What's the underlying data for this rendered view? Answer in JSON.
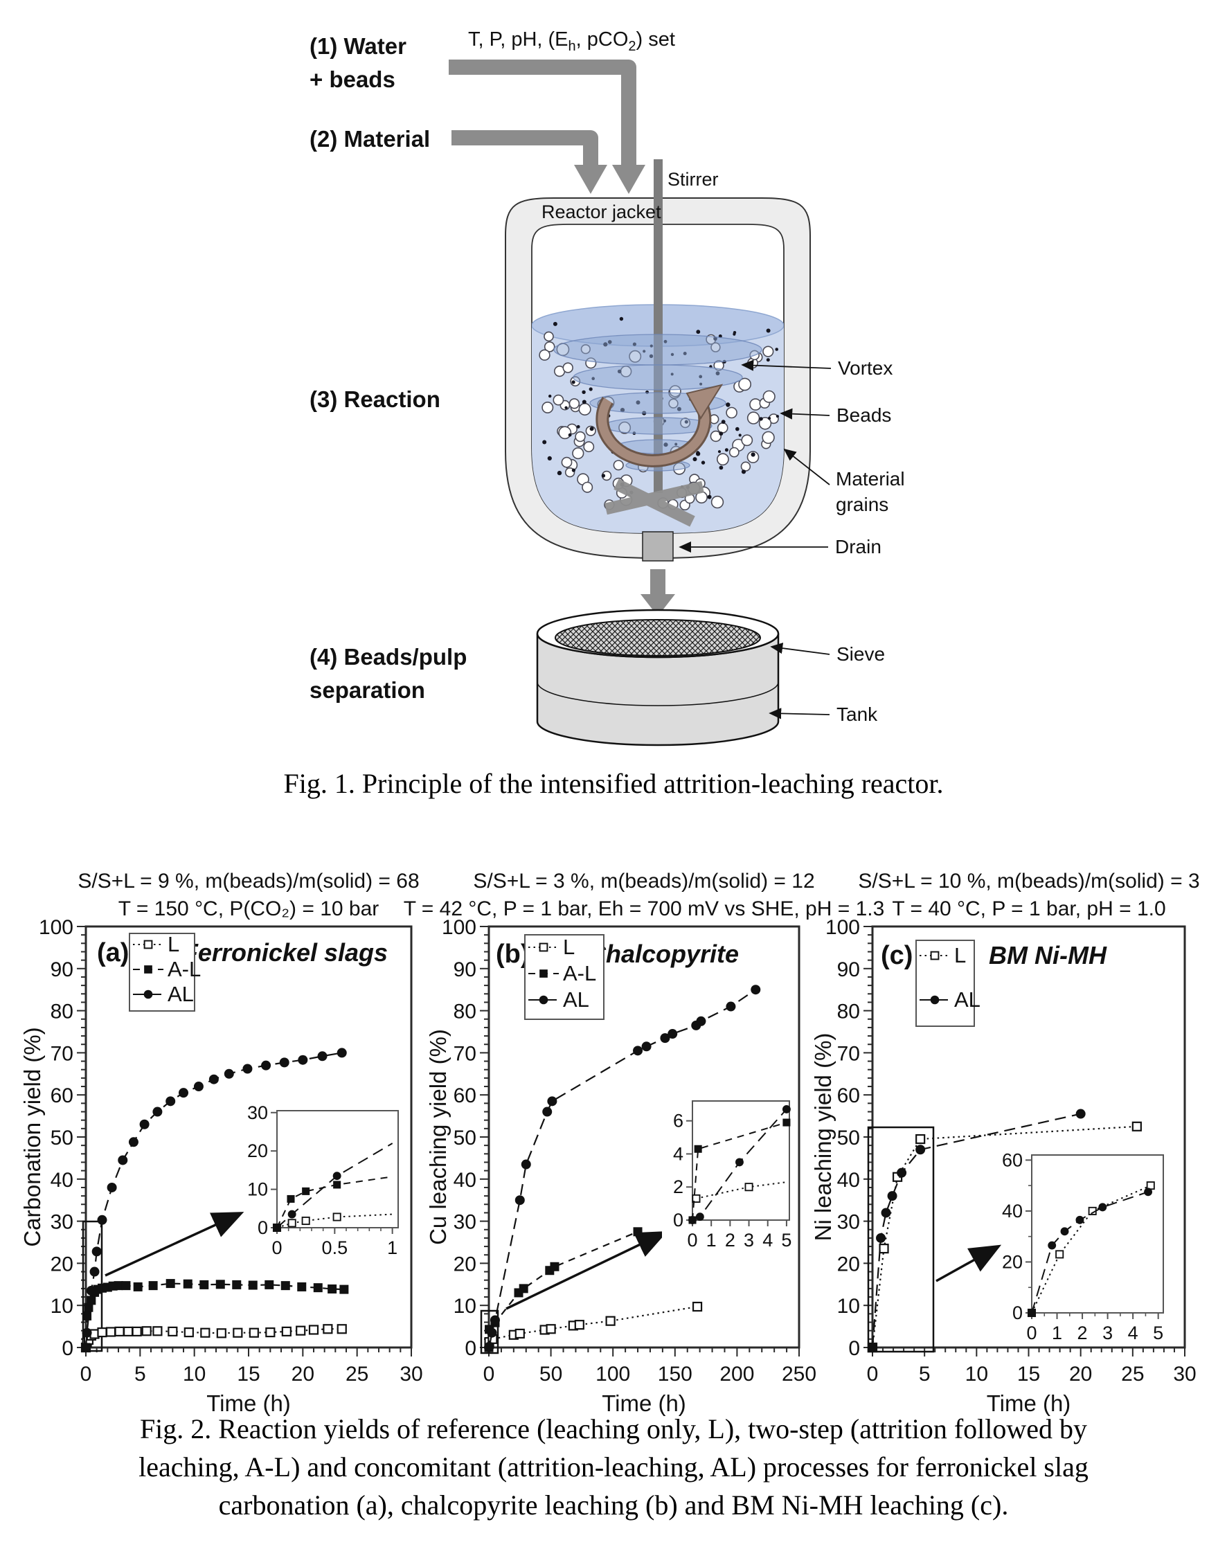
{
  "figure1": {
    "labels": {
      "step1_line1": "(1) Water",
      "step1_line2": "+ beads",
      "params_parts": [
        "T, P, pH, (E",
        "h",
        ", pCO",
        "2",
        ") set"
      ],
      "step2": "(2) Material",
      "stirrer": "Stirrer",
      "reactor_jacket": "Reactor jacket",
      "step3": "(3) Reaction",
      "vortex": "Vortex",
      "beads": "Beads",
      "material_grains_line1": "Material",
      "material_grains_line2": "grains",
      "drain": "Drain",
      "step4_line1": "(4) Beads/pulp",
      "step4_line2": "separation",
      "sieve": "Sieve",
      "tank": "Tank"
    },
    "caption": "Fig. 1. Principle of the intensified attrition-leaching reactor."
  },
  "figure2": {
    "caption_lines": [
      "Fig. 2. Reaction yields of reference (leaching only, L), two-step (attrition followed by",
      "leaching, A-L) and concomitant (attrition-leaching, AL) processes for ferronickel slag",
      "carbonation (a), chalcopyrite leaching (b) and BM Ni-MH leaching (c)."
    ]
  },
  "chart_data": [
    {
      "type": "line",
      "panel": "(a)",
      "material": "Ferronickel slags",
      "title_lines": [
        "S/S+L = 9 %, m(beads)/m(solid) = 68",
        "T = 150 °C, P(CO₂) = 10 bar"
      ],
      "xlabel": "Time (h)",
      "ylabel": "Carbonation yield (%)",
      "xlim": [
        0,
        30
      ],
      "ylim": [
        0,
        100
      ],
      "xticks": [
        0,
        5,
        10,
        15,
        20,
        25,
        30
      ],
      "xminor": 1,
      "yticks": [
        0,
        10,
        20,
        30,
        40,
        50,
        60,
        70,
        80,
        90,
        100
      ],
      "yminor": 2,
      "legend": [
        "L",
        "A-L",
        "AL"
      ],
      "series": [
        {
          "name": "L",
          "marker": "open-square",
          "line": "dotted",
          "points": [
            [
              0,
              0
            ],
            [
              0.1,
              1.2
            ],
            [
              0.25,
              1.8
            ],
            [
              0.5,
              2.8
            ],
            [
              0.8,
              3.2
            ],
            [
              1.5,
              3.6
            ],
            [
              2.3,
              3.7
            ],
            [
              3.1,
              3.8
            ],
            [
              3.9,
              3.8
            ],
            [
              4.7,
              3.8
            ],
            [
              5.6,
              3.9
            ],
            [
              6.6,
              3.9
            ],
            [
              8,
              3.8
            ],
            [
              9.5,
              3.6
            ],
            [
              11,
              3.5
            ],
            [
              12.5,
              3.4
            ],
            [
              14,
              3.5
            ],
            [
              15.5,
              3.5
            ],
            [
              17,
              3.6
            ],
            [
              18.5,
              3.8
            ],
            [
              19.8,
              4
            ],
            [
              21,
              4.2
            ],
            [
              22.3,
              4.4
            ],
            [
              23.6,
              4.4
            ]
          ]
        },
        {
          "name": "A-L",
          "marker": "filled-square",
          "line": "dashed",
          "points": [
            [
              0,
              0
            ],
            [
              0.1,
              7.5
            ],
            [
              0.25,
              9.5
            ],
            [
              0.5,
              11.2
            ],
            [
              0.8,
              13.1
            ],
            [
              1.1,
              13.8
            ],
            [
              1.5,
              14.1
            ],
            [
              2,
              14.3
            ],
            [
              2.5,
              14.6
            ],
            [
              3,
              14.7
            ],
            [
              3.7,
              14.7
            ],
            [
              4.8,
              14.4
            ],
            [
              6.2,
              14.7
            ],
            [
              7.8,
              15.2
            ],
            [
              9.4,
              15.1
            ],
            [
              10.9,
              14.9
            ],
            [
              12.4,
              15
            ],
            [
              13.9,
              14.9
            ],
            [
              15.4,
              14.8
            ],
            [
              16.9,
              14.9
            ],
            [
              18.4,
              14.7
            ],
            [
              19.9,
              14.4
            ],
            [
              21.4,
              14.2
            ],
            [
              22.7,
              13.9
            ],
            [
              23.8,
              13.8
            ]
          ]
        },
        {
          "name": "AL",
          "marker": "filled-circle",
          "line": "longdash",
          "points": [
            [
              0,
              0
            ],
            [
              0.1,
              3.5
            ],
            [
              0.5,
              13.5
            ],
            [
              0.8,
              18
            ],
            [
              1,
              22.8
            ],
            [
              1.5,
              30.3
            ],
            [
              2.4,
              38
            ],
            [
              3.4,
              44.5
            ],
            [
              4.4,
              48.8
            ],
            [
              5.4,
              53
            ],
            [
              6.6,
              56
            ],
            [
              7.8,
              58.5
            ],
            [
              9,
              60.5
            ],
            [
              10.4,
              62
            ],
            [
              11.8,
              63.7
            ],
            [
              13.2,
              65
            ],
            [
              14.9,
              66.2
            ],
            [
              16.6,
              67
            ],
            [
              18.3,
              67.7
            ],
            [
              20,
              68.3
            ],
            [
              21.8,
              69.2
            ],
            [
              23.6,
              70
            ]
          ]
        }
      ],
      "inset": {
        "xlim": [
          0,
          1.05
        ],
        "ylim": [
          0,
          30.5
        ],
        "xticks": [
          0,
          0.5,
          1
        ],
        "xminor": 0.1,
        "yticks": [
          0,
          10,
          20,
          30
        ],
        "series": [
          {
            "name": "L",
            "marker": "open-square",
            "line": "dotted",
            "points": [
              [
                0,
                0
              ],
              [
                0.13,
                1.2
              ],
              [
                0.25,
                1.8
              ],
              [
                0.52,
                2.8
              ]
            ],
            "line_end": [
              1,
              3.5
            ]
          },
          {
            "name": "A-L",
            "marker": "filled-square",
            "line": "dashed",
            "points": [
              [
                0,
                0
              ],
              [
                0.12,
                7.5
              ],
              [
                0.25,
                9.5
              ],
              [
                0.52,
                11.2
              ]
            ],
            "line_end": [
              1,
              13.3
            ]
          },
          {
            "name": "AL",
            "marker": "filled-circle",
            "line": "longdash",
            "points": [
              [
                0,
                0
              ],
              [
                0.13,
                3.5
              ],
              [
                0.52,
                13.5
              ]
            ],
            "line_end": [
              1,
              22
            ]
          }
        ]
      }
    },
    {
      "type": "line",
      "panel": "(b)",
      "material": "Chalcopyrite",
      "title_lines": [
        "S/S+L = 3 %, m(beads)/m(solid) = 12",
        "T = 42 °C, P = 1 bar, Eh = 700 mV vs SHE, pH = 1.3"
      ],
      "xlabel": "Time (h)",
      "ylabel": "Cu leaching yield (%)",
      "xlim": [
        0,
        250
      ],
      "ylim": [
        0,
        100
      ],
      "xticks": [
        0,
        50,
        100,
        150,
        200,
        250
      ],
      "xminor": 10,
      "yticks": [
        0,
        10,
        20,
        30,
        40,
        50,
        60,
        70,
        80,
        90,
        100
      ],
      "yminor": 2,
      "legend": [
        "L",
        "A-L",
        "AL"
      ],
      "series": [
        {
          "name": "L",
          "marker": "open-square",
          "line": "dotted",
          "points": [
            [
              0.3,
              1.3
            ],
            [
              3,
              2
            ],
            [
              20,
              3
            ],
            [
              25,
              3.3
            ],
            [
              45,
              4.2
            ],
            [
              50,
              4.4
            ],
            [
              68,
              5.2
            ],
            [
              73,
              5.4
            ],
            [
              98,
              6.3
            ],
            [
              168,
              9.7
            ]
          ]
        },
        {
          "name": "A-L",
          "marker": "filled-square",
          "line": "dashed",
          "points": [
            [
              0,
              0
            ],
            [
              0.3,
              4.3
            ],
            [
              5,
              5.9
            ],
            [
              24,
              13
            ],
            [
              28,
              14
            ],
            [
              49,
              18.3
            ],
            [
              53,
              19.2
            ],
            [
              120,
              27.5
            ]
          ]
        },
        {
          "name": "AL",
          "marker": "filled-circle",
          "line": "longdash",
          "points": [
            [
              0,
              0
            ],
            [
              0.4,
              0.2
            ],
            [
              2.5,
              3.5
            ],
            [
              5,
              6.5
            ],
            [
              25,
              35
            ],
            [
              30,
              43.5
            ],
            [
              47,
              56
            ],
            [
              51,
              58.5
            ],
            [
              120,
              70.5
            ],
            [
              127,
              71.5
            ],
            [
              142,
              73.5
            ],
            [
              148,
              74.5
            ],
            [
              167,
              76.5
            ],
            [
              171,
              77.5
            ],
            [
              195,
              81
            ],
            [
              215,
              85
            ]
          ]
        }
      ],
      "inset": {
        "xlim": [
          0,
          5.15
        ],
        "ylim": [
          0,
          7.2
        ],
        "xticks": [
          0,
          1,
          2,
          3,
          4,
          5
        ],
        "yticks": [
          0,
          2,
          4,
          6
        ],
        "series": [
          {
            "name": "L",
            "marker": "open-square",
            "line": "dotted",
            "points": [
              [
                0.2,
                1.3
              ],
              [
                3,
                2
              ]
            ],
            "line_end": [
              5,
              2.3
            ]
          },
          {
            "name": "A-L",
            "marker": "filled-square",
            "line": "dashed",
            "points": [
              [
                0,
                0
              ],
              [
                0.3,
                4.3
              ],
              [
                5,
                5.9
              ]
            ]
          },
          {
            "name": "AL",
            "marker": "filled-circle",
            "line": "longdash",
            "points": [
              [
                0,
                0
              ],
              [
                0.4,
                0.2
              ],
              [
                2.5,
                3.5
              ],
              [
                5,
                6.7
              ]
            ]
          }
        ]
      }
    },
    {
      "type": "line",
      "panel": "(c)",
      "material": "BM Ni-MH",
      "title_lines": [
        "S/S+L = 10 %, m(beads)/m(solid) = 3",
        "T = 40 °C, P = 1 bar, pH = 1.0"
      ],
      "xlabel": "Time (h)",
      "ylabel": "Ni leaching yield (%)",
      "xlim": [
        0,
        30
      ],
      "ylim": [
        0,
        100
      ],
      "xticks": [
        0,
        5,
        10,
        15,
        20,
        25,
        30
      ],
      "xminor": 1,
      "yticks": [
        0,
        10,
        20,
        30,
        40,
        50,
        60,
        70,
        80,
        90,
        100
      ],
      "yminor": 2,
      "legend": [
        "L",
        "AL"
      ],
      "series": [
        {
          "name": "L",
          "marker": "open-square",
          "line": "dotted",
          "points": [
            [
              0,
              0
            ],
            [
              1.1,
              23.5
            ],
            [
              2.4,
              40.5
            ],
            [
              4.6,
              49.5
            ],
            [
              25.4,
              52.5
            ]
          ]
        },
        {
          "name": "AL",
          "marker": "filled-circle",
          "line": "longdash",
          "points": [
            [
              0,
              0
            ],
            [
              0.8,
              26
            ],
            [
              1.3,
              32
            ],
            [
              1.9,
              36
            ],
            [
              2.8,
              41.5
            ],
            [
              4.6,
              47
            ],
            [
              20,
              55.5
            ]
          ]
        }
      ],
      "inset": {
        "xlim": [
          0,
          5.2
        ],
        "ylim": [
          0,
          62
        ],
        "xticks": [
          0,
          1,
          2,
          3,
          4,
          5
        ],
        "xminor": 0.5,
        "yticks": [
          0,
          20,
          40,
          60
        ],
        "yminor": 10,
        "series": [
          {
            "name": "L",
            "marker": "open-square",
            "line": "dotted",
            "points": [
              [
                0,
                0
              ],
              [
                1.1,
                23
              ],
              [
                2.4,
                40
              ],
              [
                4.7,
                50
              ]
            ]
          },
          {
            "name": "AL",
            "marker": "filled-circle",
            "line": "longdash",
            "points": [
              [
                0,
                0
              ],
              [
                0.8,
                26.5
              ],
              [
                1.3,
                32
              ],
              [
                1.9,
                36.5
              ],
              [
                2.8,
                41.5
              ],
              [
                4.6,
                47.5
              ]
            ]
          }
        ]
      }
    }
  ]
}
